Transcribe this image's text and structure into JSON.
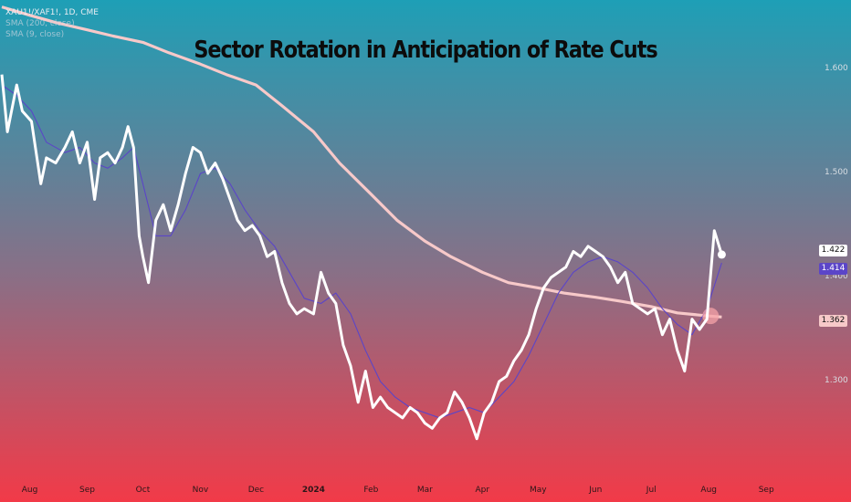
{
  "legend": {
    "symbol": "XAU1!/XAF1!, 1D, CME",
    "sma200": "SMA (200, close)",
    "sma9": "SMA (9, close)"
  },
  "title": "Sector Rotation in Anticipation of Rate Cuts",
  "badges": {
    "price": "1.422",
    "sma9": "1.414",
    "sma200": "1.362"
  },
  "colors": {
    "background_top": "#1e9fb6",
    "background_mid": "#8a6f86",
    "background_bottom": "#f23a48",
    "price_line": "#ffffff",
    "sma9_line": "#5b45c8",
    "sma200_line": "#f7c9c9",
    "badge_price_bg": "#ffffff",
    "badge_sma9_bg": "#5b45c8",
    "badge_sma200_bg": "#f7c9c9",
    "highlight_circle": "#f5a3a8"
  },
  "chart_data": {
    "type": "line",
    "title": "Sector Rotation in Anticipation of Rate Cuts",
    "y_ticks": [
      "1.600",
      "1.500",
      "1.400",
      "1.300"
    ],
    "y_tick_values": [
      1.6,
      1.5,
      1.4,
      1.3
    ],
    "x_ticks": [
      "Aug",
      "Sep",
      "Oct",
      "Nov",
      "Dec",
      "2024",
      "Feb",
      "Mar",
      "Apr",
      "May",
      "Jun",
      "Jul",
      "Aug",
      "Sep"
    ],
    "x_tick_dates": [
      "2023-08-01",
      "2023-09-01",
      "2023-10-01",
      "2023-11-01",
      "2023-12-01",
      "2024-01-01",
      "2024-02-01",
      "2024-03-01",
      "2024-04-01",
      "2024-05-01",
      "2024-06-01",
      "2024-07-01",
      "2024-08-01",
      "2024-09-01"
    ],
    "ylim": [
      1.22,
      1.66
    ],
    "xlim": [
      "2023-07-16",
      "2024-09-26"
    ],
    "grid": false,
    "series": [
      {
        "name": "XAU1!/XAF1!",
        "x": [
          "2023-07-17",
          "2023-07-20",
          "2023-07-25",
          "2023-07-28",
          "2023-08-02",
          "2023-08-07",
          "2023-08-10",
          "2023-08-15",
          "2023-08-20",
          "2023-08-24",
          "2023-08-28",
          "2023-09-01",
          "2023-09-05",
          "2023-09-08",
          "2023-09-12",
          "2023-09-16",
          "2023-09-20",
          "2023-09-23",
          "2023-09-26",
          "2023-09-29",
          "2023-10-01",
          "2023-10-04",
          "2023-10-08",
          "2023-10-12",
          "2023-10-16",
          "2023-10-20",
          "2023-10-24",
          "2023-10-28",
          "2023-11-01",
          "2023-11-05",
          "2023-11-09",
          "2023-11-13",
          "2023-11-17",
          "2023-11-21",
          "2023-11-25",
          "2023-11-29",
          "2023-12-03",
          "2023-12-07",
          "2023-12-11",
          "2023-12-15",
          "2023-12-19",
          "2023-12-23",
          "2023-12-27",
          "2024-01-01",
          "2024-01-05",
          "2024-01-09",
          "2024-01-13",
          "2024-01-17",
          "2024-01-21",
          "2024-01-25",
          "2024-01-29",
          "2024-02-02",
          "2024-02-06",
          "2024-02-10",
          "2024-02-14",
          "2024-02-18",
          "2024-02-22",
          "2024-02-26",
          "2024-03-01",
          "2024-03-05",
          "2024-03-09",
          "2024-03-13",
          "2024-03-17",
          "2024-03-21",
          "2024-03-25",
          "2024-03-29",
          "2024-04-02",
          "2024-04-06",
          "2024-04-10",
          "2024-04-14",
          "2024-04-18",
          "2024-04-22",
          "2024-04-26",
          "2024-04-30",
          "2024-05-04",
          "2024-05-08",
          "2024-05-12",
          "2024-05-16",
          "2024-05-20",
          "2024-05-24",
          "2024-05-28",
          "2024-06-01",
          "2024-06-05",
          "2024-06-09",
          "2024-06-13",
          "2024-06-17",
          "2024-06-21",
          "2024-06-25",
          "2024-06-29",
          "2024-07-03",
          "2024-07-07",
          "2024-07-11",
          "2024-07-15",
          "2024-07-19",
          "2024-07-23",
          "2024-07-27",
          "2024-07-31",
          "2024-08-04",
          "2024-08-08"
        ],
        "y": [
          1.595,
          1.54,
          1.585,
          1.56,
          1.55,
          1.49,
          1.515,
          1.51,
          1.525,
          1.54,
          1.51,
          1.53,
          1.475,
          1.515,
          1.52,
          1.51,
          1.525,
          1.545,
          1.525,
          1.44,
          1.42,
          1.395,
          1.455,
          1.47,
          1.445,
          1.47,
          1.5,
          1.525,
          1.52,
          1.5,
          1.51,
          1.495,
          1.475,
          1.455,
          1.445,
          1.45,
          1.44,
          1.42,
          1.425,
          1.395,
          1.375,
          1.365,
          1.37,
          1.365,
          1.405,
          1.385,
          1.375,
          1.335,
          1.315,
          1.28,
          1.31,
          1.275,
          1.285,
          1.275,
          1.27,
          1.265,
          1.275,
          1.27,
          1.26,
          1.255,
          1.265,
          1.27,
          1.29,
          1.28,
          1.265,
          1.245,
          1.27,
          1.28,
          1.3,
          1.305,
          1.32,
          1.33,
          1.345,
          1.37,
          1.39,
          1.4,
          1.405,
          1.41,
          1.425,
          1.42,
          1.43,
          1.425,
          1.42,
          1.41,
          1.395,
          1.405,
          1.375,
          1.37,
          1.365,
          1.37,
          1.345,
          1.36,
          1.33,
          1.31,
          1.36,
          1.35,
          1.36,
          1.445,
          1.422
        ]
      },
      {
        "name": "SMA (9, close)",
        "x": [
          "2023-07-17",
          "2023-07-25",
          "2023-08-02",
          "2023-08-10",
          "2023-08-20",
          "2023-08-28",
          "2023-09-05",
          "2023-09-12",
          "2023-09-20",
          "2023-09-26",
          "2023-10-01",
          "2023-10-08",
          "2023-10-16",
          "2023-10-24",
          "2023-11-01",
          "2023-11-09",
          "2023-11-17",
          "2023-11-25",
          "2023-12-03",
          "2023-12-11",
          "2023-12-19",
          "2023-12-27",
          "2024-01-05",
          "2024-01-13",
          "2024-01-21",
          "2024-01-29",
          "2024-02-06",
          "2024-02-14",
          "2024-02-22",
          "2024-03-01",
          "2024-03-09",
          "2024-03-17",
          "2024-03-25",
          "2024-04-02",
          "2024-04-10",
          "2024-04-18",
          "2024-04-26",
          "2024-05-04",
          "2024-05-12",
          "2024-05-20",
          "2024-05-28",
          "2024-06-05",
          "2024-06-13",
          "2024-06-21",
          "2024-06-29",
          "2024-07-07",
          "2024-07-15",
          "2024-07-23",
          "2024-07-31",
          "2024-08-08"
        ],
        "y": [
          1.585,
          1.575,
          1.56,
          1.53,
          1.52,
          1.525,
          1.51,
          1.505,
          1.515,
          1.525,
          1.49,
          1.44,
          1.44,
          1.465,
          1.5,
          1.505,
          1.49,
          1.465,
          1.445,
          1.43,
          1.405,
          1.38,
          1.375,
          1.385,
          1.365,
          1.33,
          1.3,
          1.285,
          1.275,
          1.27,
          1.265,
          1.27,
          1.275,
          1.27,
          1.285,
          1.3,
          1.325,
          1.355,
          1.385,
          1.405,
          1.415,
          1.42,
          1.415,
          1.405,
          1.39,
          1.37,
          1.355,
          1.345,
          1.37,
          1.414
        ]
      },
      {
        "name": "SMA (200, close)",
        "x": [
          "2023-07-17",
          "2023-08-01",
          "2023-08-15",
          "2023-09-01",
          "2023-09-15",
          "2023-10-01",
          "2023-10-15",
          "2023-11-01",
          "2023-11-15",
          "2023-12-01",
          "2023-12-15",
          "2024-01-01",
          "2024-01-15",
          "2024-02-01",
          "2024-02-15",
          "2024-03-01",
          "2024-03-15",
          "2024-04-01",
          "2024-04-15",
          "2024-05-01",
          "2024-05-15",
          "2024-06-01",
          "2024-06-15",
          "2024-07-01",
          "2024-07-15",
          "2024-08-01",
          "2024-08-08"
        ],
        "y": [
          1.66,
          1.652,
          1.645,
          1.638,
          1.632,
          1.626,
          1.616,
          1.605,
          1.595,
          1.585,
          1.565,
          1.54,
          1.51,
          1.48,
          1.455,
          1.435,
          1.42,
          1.405,
          1.395,
          1.39,
          1.385,
          1.381,
          1.377,
          1.372,
          1.366,
          1.363,
          1.362
        ]
      }
    ]
  }
}
